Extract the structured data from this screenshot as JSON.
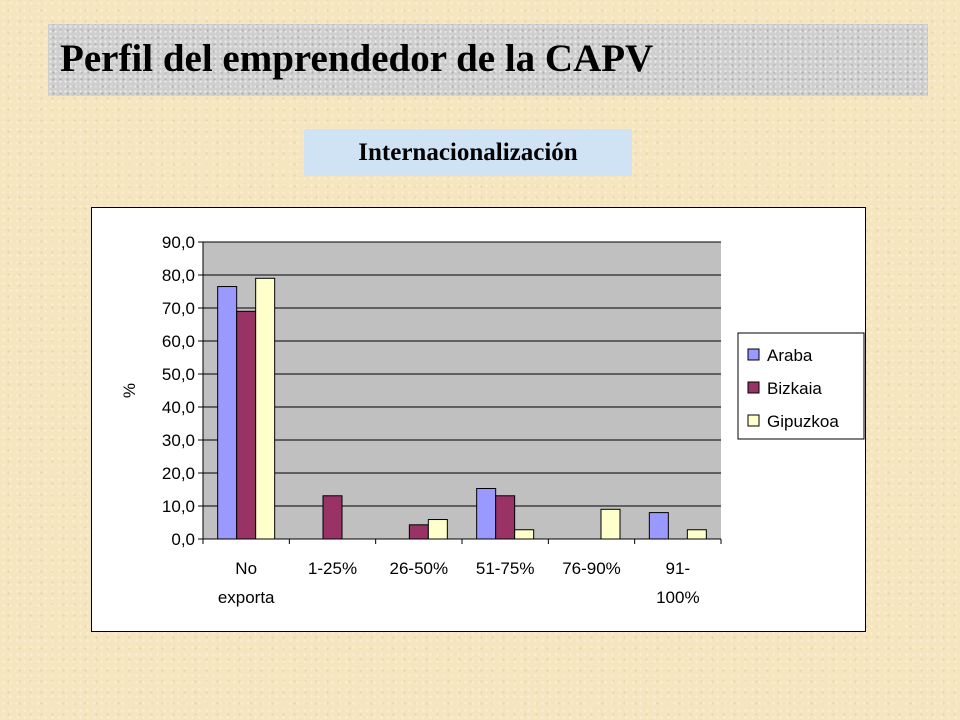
{
  "header": {
    "title": "Perfil del emprendedor de la CAPV",
    "subtitle": "Internacionalización"
  },
  "chart_data": {
    "type": "bar",
    "categories": [
      [
        "No",
        "exporta"
      ],
      [
        "1-25%"
      ],
      [
        "26-50%"
      ],
      [
        "51-75%"
      ],
      [
        "76-90%"
      ],
      [
        "91-",
        "100%"
      ]
    ],
    "series": [
      {
        "name": "Araba",
        "color": "#9999ff",
        "values": [
          76.5,
          0,
          0,
          15.3,
          0,
          8.0
        ]
      },
      {
        "name": "Bizkaia",
        "color": "#993366",
        "values": [
          69.0,
          13.1,
          4.3,
          13.1,
          0,
          0
        ]
      },
      {
        "name": "Gipuzkoa",
        "color": "#ffffcc",
        "values": [
          79.0,
          0,
          5.9,
          2.8,
          9.0,
          2.8
        ]
      }
    ],
    "ylabel": "%",
    "ylim": [
      0,
      90
    ],
    "yticks": [
      "0,0",
      "10,0",
      "20,0",
      "30,0",
      "40,0",
      "50,0",
      "60,0",
      "70,0",
      "80,0",
      "90,0"
    ],
    "grid": true,
    "plot_background": "#c0c0c0",
    "legend_position": "right"
  }
}
